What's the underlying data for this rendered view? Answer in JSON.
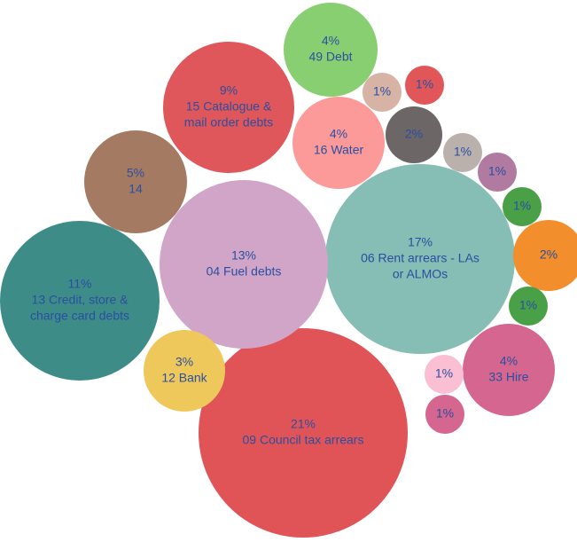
{
  "chart_data": {
    "type": "bubble",
    "title": "",
    "bubbles": [
      {
        "pct": "21%",
        "label": [
          "09 Council tax arrears"
        ],
        "value": 21,
        "color": "#e05458"
      },
      {
        "pct": "17%",
        "label": [
          "06 Rent arrears - LAs",
          "or ALMOs"
        ],
        "value": 17,
        "color": "#86bdb4"
      },
      {
        "pct": "13%",
        "label": [
          "04 Fuel debts"
        ],
        "value": 13,
        "color": "#d1a5c8"
      },
      {
        "pct": "11%",
        "label": [
          "13 Credit, store &",
          "charge card debts"
        ],
        "value": 11,
        "color": "#3d8c87"
      },
      {
        "pct": "9%",
        "label": [
          "15 Catalogue &",
          "mail order debts"
        ],
        "value": 9,
        "color": "#df575b"
      },
      {
        "pct": "5%",
        "label": [
          "14"
        ],
        "value": 5,
        "color": "#a57a63"
      },
      {
        "pct": "4%",
        "label": [
          "49 Debt"
        ],
        "value": 4,
        "color": "#88cf72"
      },
      {
        "pct": "4%",
        "label": [
          "16 Water"
        ],
        "value": 4,
        "color": "#fc9a9a"
      },
      {
        "pct": "4%",
        "label": [
          "33 Hire"
        ],
        "value": 4,
        "color": "#d4668f"
      },
      {
        "pct": "3%",
        "label": [
          "12 Bank"
        ],
        "value": 3,
        "color": "#efc85b"
      },
      {
        "pct": "2%",
        "label": [],
        "value": 2,
        "color": "#6d6666"
      },
      {
        "pct": "2%",
        "label": [],
        "value": 2,
        "color": "#f28e2b"
      },
      {
        "pct": "1%",
        "label": [],
        "value": 1,
        "color": "#d6b3a5"
      },
      {
        "pct": "1%",
        "label": [],
        "value": 1,
        "color": "#e15759"
      },
      {
        "pct": "1%",
        "label": [],
        "value": 1,
        "color": "#bab0ac"
      },
      {
        "pct": "1%",
        "label": [],
        "value": 1,
        "color": "#b07aa1"
      },
      {
        "pct": "1%",
        "label": [],
        "value": 1,
        "color": "#4aa046"
      },
      {
        "pct": "1%",
        "label": [],
        "value": 1,
        "color": "#4aa046"
      },
      {
        "pct": "1%",
        "label": [],
        "value": 1,
        "color": "#fabfd2"
      },
      {
        "pct": "1%",
        "label": [],
        "value": 1,
        "color": "#d4668f"
      }
    ]
  }
}
